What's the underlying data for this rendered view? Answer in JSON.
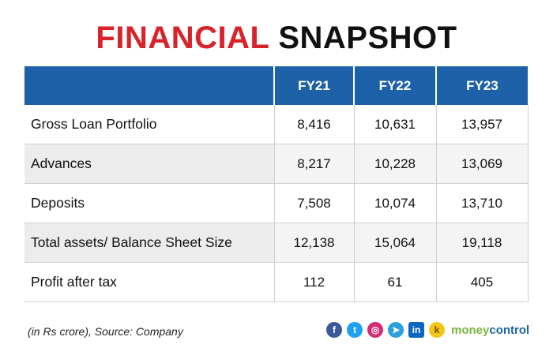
{
  "title": {
    "part1": "FINANCIAL",
    "part2": "SNAPSHOT"
  },
  "table": {
    "headers": [
      "",
      "FY21",
      "FY22",
      "FY23"
    ],
    "rows": [
      {
        "label": "Gross Loan Portfolio",
        "values": [
          "8,416",
          "10,631",
          "13,957"
        ]
      },
      {
        "label": "Advances",
        "values": [
          "8,217",
          "10,228",
          "13,069"
        ]
      },
      {
        "label": "Deposits",
        "values": [
          "7,508",
          "10,074",
          "13,710"
        ]
      },
      {
        "label": "Total assets/ Balance Sheet Size",
        "values": [
          "12,138",
          "15,064",
          "19,118"
        ]
      },
      {
        "label": "Profit after tax",
        "values": [
          "112",
          "61",
          "405"
        ]
      }
    ]
  },
  "footnote": "(in Rs crore), Source: Company",
  "social_icons": [
    {
      "name": "facebook-icon",
      "glyph": "f"
    },
    {
      "name": "twitter-icon",
      "glyph": "t"
    },
    {
      "name": "instagram-icon",
      "glyph": "◎"
    },
    {
      "name": "telegram-icon",
      "glyph": "➤"
    },
    {
      "name": "linkedin-icon",
      "glyph": "in"
    },
    {
      "name": "kooapp-icon",
      "glyph": "k"
    }
  ],
  "brand": {
    "part1": "money",
    "part2": "control"
  },
  "colors": {
    "title_red": "#d8232a",
    "header_blue": "#1d62a8",
    "row_stripe": "#ececec"
  }
}
